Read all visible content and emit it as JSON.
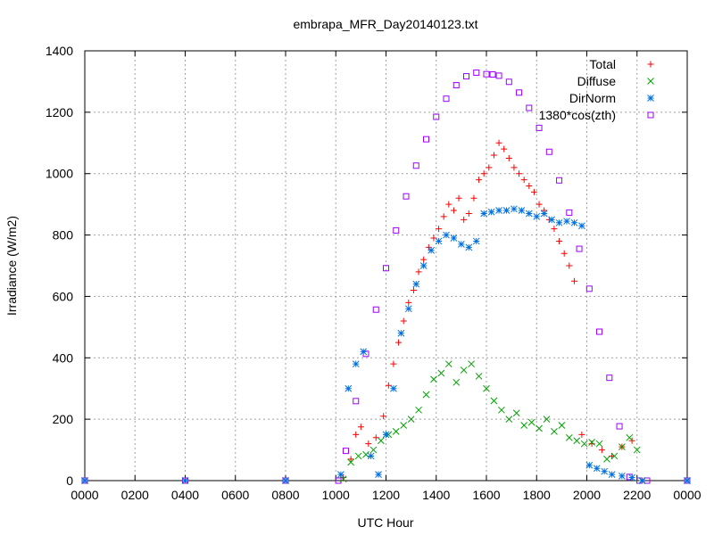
{
  "chart_data": {
    "type": "scatter",
    "title": "embrapa_MFR_Day20140123.txt",
    "xlabel": "UTC Hour",
    "ylabel": "Irradiance (W/m2)",
    "xlim": [
      0,
      24
    ],
    "ylim": [
      0,
      1400
    ],
    "grid": true,
    "legend_position": "top-right",
    "x_ticks": [
      {
        "value": 0,
        "label": "0000"
      },
      {
        "value": 2,
        "label": "0200"
      },
      {
        "value": 4,
        "label": "0400"
      },
      {
        "value": 6,
        "label": "0600"
      },
      {
        "value": 8,
        "label": "0800"
      },
      {
        "value": 10,
        "label": "1000"
      },
      {
        "value": 12,
        "label": "1200"
      },
      {
        "value": 14,
        "label": "1400"
      },
      {
        "value": 16,
        "label": "1600"
      },
      {
        "value": 18,
        "label": "1800"
      },
      {
        "value": 20,
        "label": "2000"
      },
      {
        "value": 22,
        "label": "2200"
      },
      {
        "value": 24,
        "label": "0000"
      }
    ],
    "y_ticks": [
      0,
      200,
      400,
      600,
      800,
      1000,
      1200,
      1400
    ],
    "series": [
      {
        "name": "Total",
        "marker": "plus",
        "color": "#ff0000",
        "x": [
          0,
          4,
          8,
          10.3,
          10.6,
          10.8,
          11.0,
          11.3,
          11.6,
          11.9,
          12.1,
          12.3,
          12.5,
          12.7,
          12.9,
          13.1,
          13.3,
          13.5,
          13.7,
          13.9,
          14.1,
          14.3,
          14.5,
          14.7,
          14.9,
          15.1,
          15.3,
          15.5,
          15.7,
          15.9,
          16.1,
          16.3,
          16.5,
          16.7,
          16.9,
          17.1,
          17.3,
          17.5,
          17.7,
          17.9,
          18.1,
          18.3,
          18.5,
          18.7,
          18.9,
          19.1,
          19.3,
          19.5,
          19.8,
          20.2,
          20.6,
          21.0,
          21.4,
          21.8,
          22.2,
          24
        ],
        "y": [
          0,
          0,
          0,
          10,
          70,
          150,
          175,
          120,
          140,
          210,
          310,
          380,
          450,
          520,
          580,
          620,
          680,
          720,
          760,
          790,
          820,
          860,
          900,
          880,
          920,
          850,
          870,
          920,
          980,
          1000,
          1020,
          1060,
          1100,
          1080,
          1050,
          1020,
          1000,
          980,
          960,
          940,
          900,
          880,
          850,
          820,
          780,
          740,
          700,
          650,
          150,
          120,
          100,
          80,
          110,
          130,
          0,
          0
        ]
      },
      {
        "name": "Diffuse",
        "marker": "cross",
        "color": "#00a000",
        "x": [
          0,
          4,
          8,
          10.3,
          10.6,
          10.9,
          11.2,
          11.5,
          11.8,
          12.1,
          12.4,
          12.7,
          13.0,
          13.3,
          13.6,
          13.9,
          14.2,
          14.5,
          14.8,
          15.1,
          15.4,
          15.7,
          16.0,
          16.3,
          16.6,
          16.9,
          17.2,
          17.5,
          17.8,
          18.1,
          18.4,
          18.7,
          19.0,
          19.3,
          19.6,
          19.9,
          20.2,
          20.5,
          20.8,
          21.1,
          21.4,
          21.7,
          22.0,
          22.2,
          24
        ],
        "y": [
          0,
          0,
          0,
          5,
          60,
          80,
          85,
          100,
          130,
          150,
          160,
          180,
          200,
          230,
          280,
          330,
          350,
          380,
          320,
          360,
          380,
          340,
          300,
          260,
          230,
          200,
          220,
          180,
          190,
          170,
          200,
          160,
          180,
          140,
          130,
          120,
          125,
          120,
          70,
          80,
          110,
          140,
          100,
          0,
          0
        ]
      },
      {
        "name": "DirNorm",
        "marker": "star",
        "color": "#0070e0",
        "x": [
          0,
          4,
          8,
          10.2,
          10.5,
          10.8,
          11.1,
          11.4,
          11.7,
          12.0,
          12.3,
          12.6,
          12.9,
          13.2,
          13.5,
          13.8,
          14.1,
          14.4,
          14.7,
          15.0,
          15.3,
          15.6,
          15.9,
          16.2,
          16.5,
          16.8,
          17.1,
          17.4,
          17.7,
          18.0,
          18.3,
          18.6,
          18.9,
          19.2,
          19.5,
          19.8,
          20.1,
          20.4,
          20.7,
          21.0,
          21.4,
          21.8,
          22.2,
          24
        ],
        "y": [
          0,
          0,
          0,
          20,
          300,
          380,
          420,
          80,
          20,
          150,
          300,
          480,
          560,
          640,
          700,
          750,
          780,
          800,
          790,
          770,
          760,
          780,
          870,
          875,
          880,
          880,
          885,
          880,
          870,
          860,
          870,
          850,
          840,
          845,
          840,
          830,
          50,
          40,
          30,
          20,
          15,
          10,
          0,
          0
        ]
      },
      {
        "name": "1380*cos(zth)",
        "marker": "square",
        "color": "#a000ff",
        "x": [
          0,
          4,
          8,
          10.1,
          10.4,
          10.8,
          11.2,
          11.6,
          12.0,
          12.4,
          12.8,
          13.2,
          13.6,
          14.0,
          14.4,
          14.8,
          15.2,
          15.6,
          16.0,
          16.25,
          16.5,
          16.9,
          17.3,
          17.7,
          18.1,
          18.5,
          18.9,
          19.3,
          19.7,
          20.1,
          20.5,
          20.9,
          21.3,
          21.7,
          22.1,
          22.4,
          24
        ],
        "y": [
          0,
          0,
          0,
          0,
          97,
          259,
          413,
          557,
          692,
          815,
          926,
          1026,
          1112,
          1185,
          1244,
          1288,
          1317,
          1329,
          1324,
          1323,
          1319,
          1299,
          1264,
          1214,
          1149,
          1071,
          978,
          873,
          755,
          625,
          485,
          335,
          177,
          12,
          0,
          0,
          0
        ]
      }
    ]
  }
}
